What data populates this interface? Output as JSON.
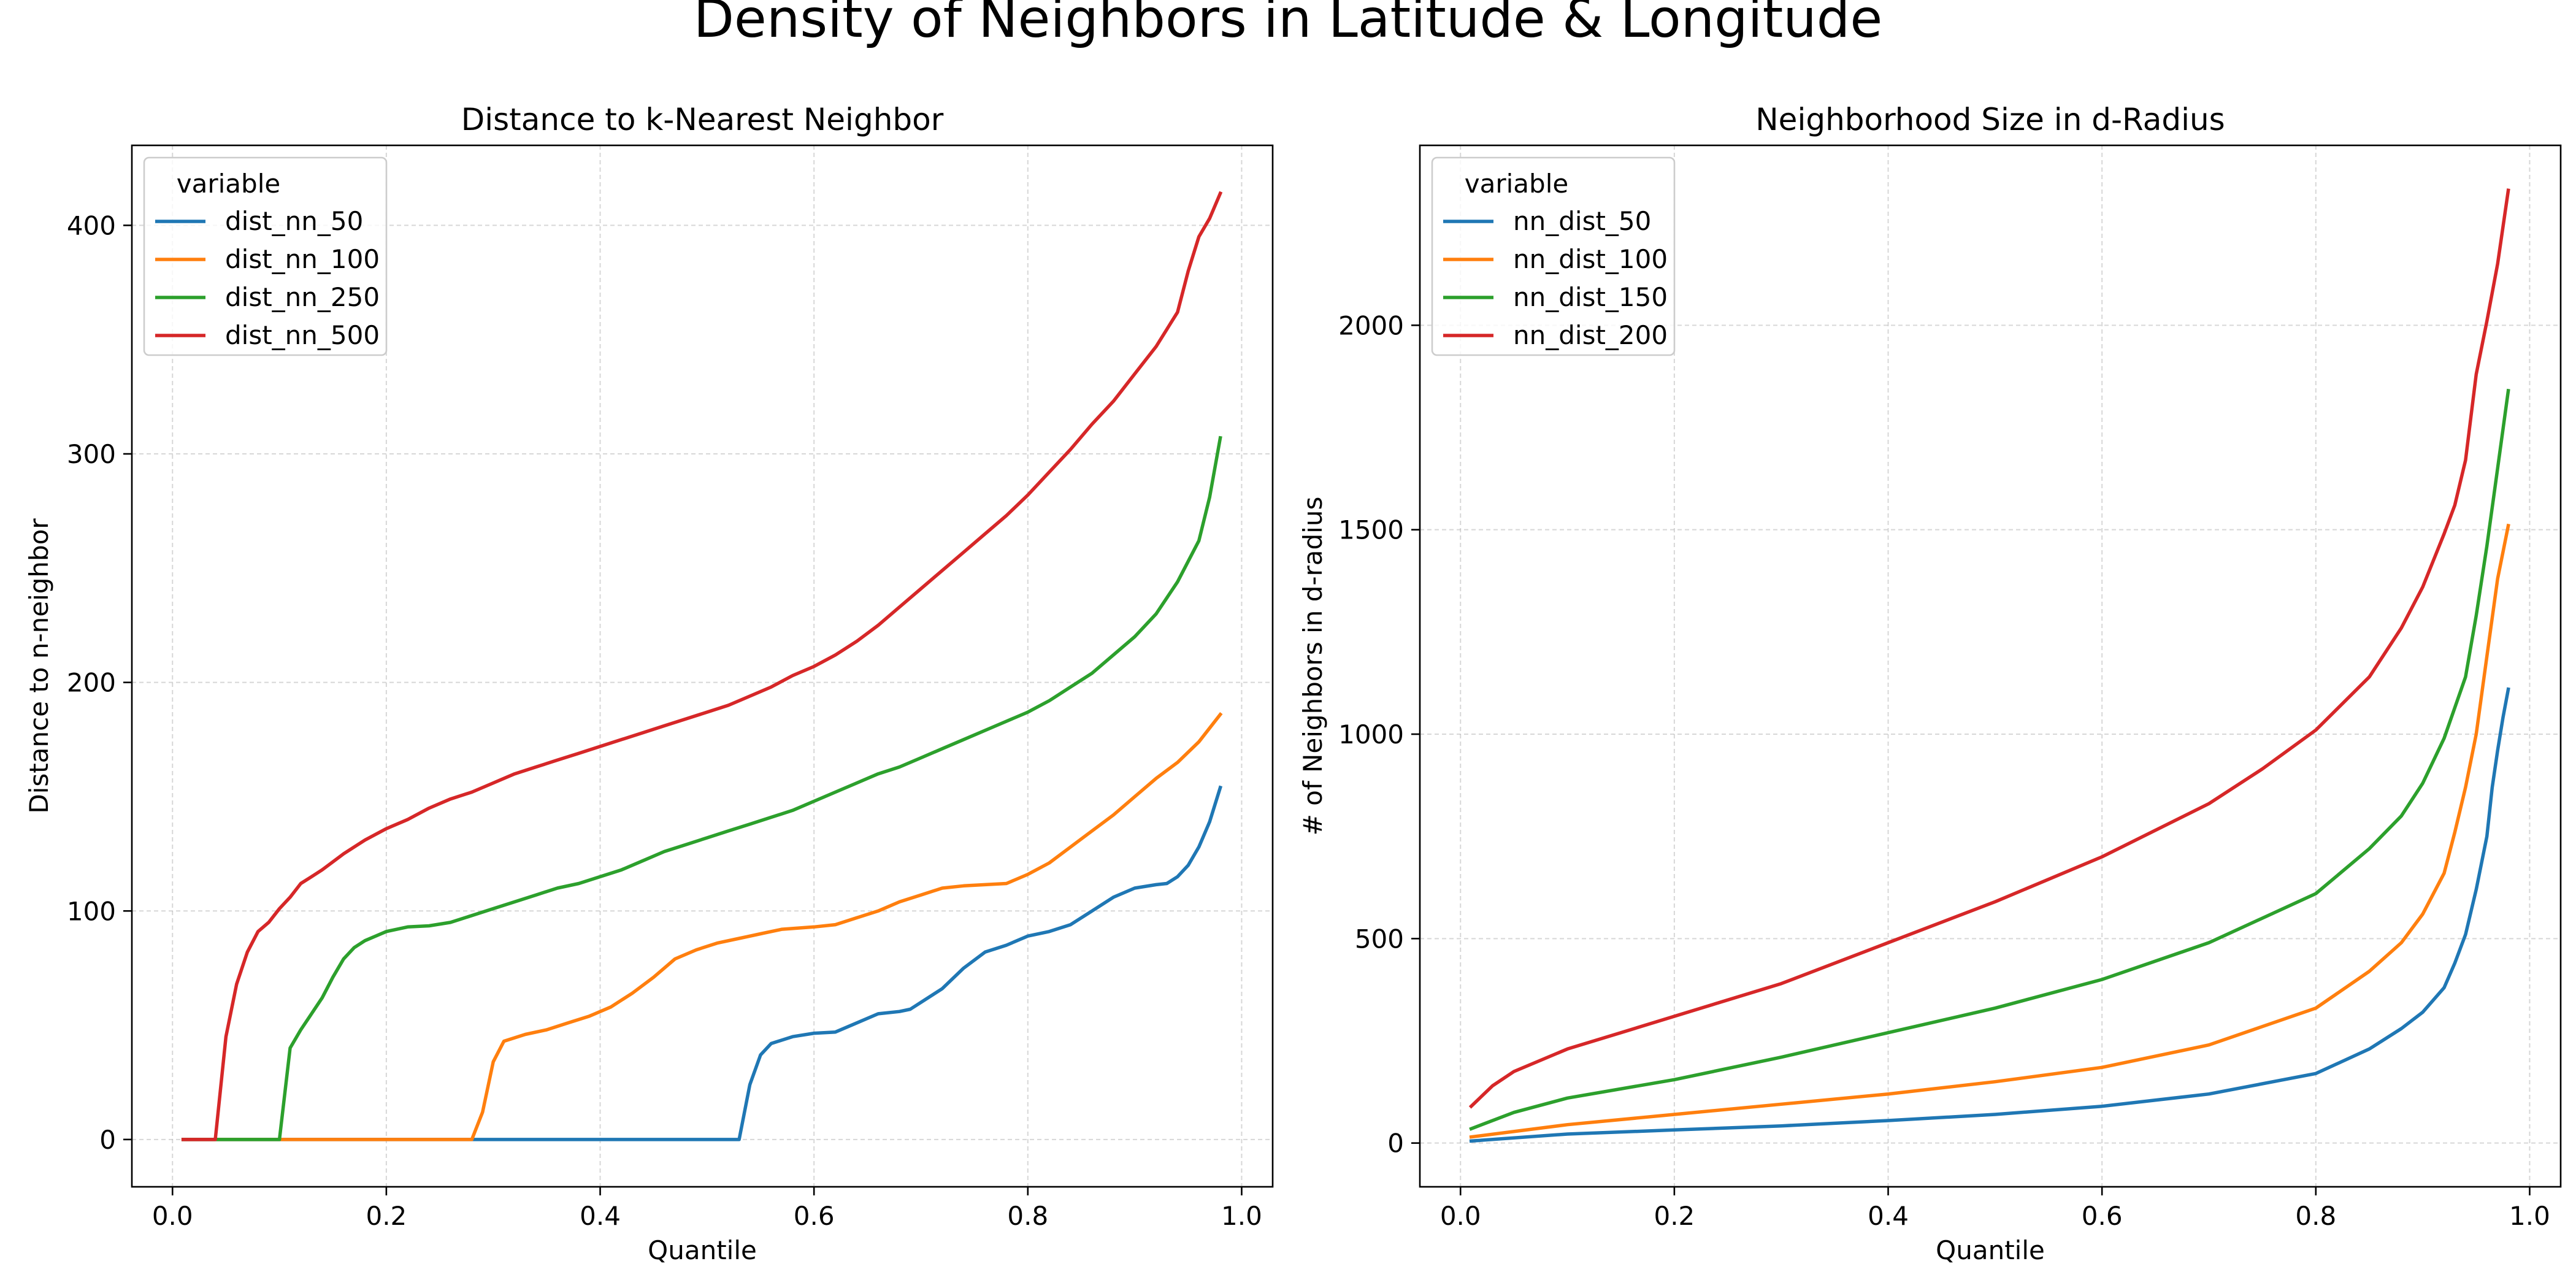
{
  "figure": {
    "title": "Density of Neighbors in Latitude & Longitude"
  },
  "chart_data": [
    {
      "type": "line",
      "title": "Distance to k-Nearest Neighbor",
      "xlabel": "Quantile",
      "ylabel": "Distance to n-neighbor",
      "xlim": [
        -0.038,
        1.029
      ],
      "ylim": [
        -20.7,
        435
      ],
      "xticks": [
        0.0,
        0.2,
        0.4,
        0.6,
        0.8,
        1.0
      ],
      "xtick_labels": [
        "0.0",
        "0.2",
        "0.4",
        "0.6",
        "0.8",
        "1.0"
      ],
      "yticks": [
        0,
        100,
        200,
        300,
        400
      ],
      "ytick_labels": [
        "0",
        "100",
        "200",
        "300",
        "400"
      ],
      "grid": true,
      "legend": {
        "title": "variable",
        "position": "top-left"
      },
      "series": [
        {
          "name": "dist_nn_50",
          "color": "#1f77b4",
          "x": [
            0.01,
            0.1,
            0.2,
            0.3,
            0.4,
            0.5,
            0.53,
            0.54,
            0.55,
            0.56,
            0.58,
            0.6,
            0.62,
            0.64,
            0.66,
            0.68,
            0.69,
            0.7,
            0.72,
            0.74,
            0.76,
            0.78,
            0.8,
            0.82,
            0.84,
            0.86,
            0.88,
            0.9,
            0.92,
            0.93,
            0.94,
            0.95,
            0.96,
            0.97,
            0.98
          ],
          "y": [
            0,
            0,
            0,
            0,
            0,
            0,
            0,
            24,
            37,
            42,
            45,
            46.5,
            47,
            51,
            55,
            56,
            57,
            60,
            66,
            75,
            82,
            85,
            89,
            91,
            94,
            100,
            106,
            110,
            111.5,
            112,
            115,
            120,
            128,
            139,
            154
          ]
        },
        {
          "name": "dist_nn_100",
          "color": "#ff7f0e",
          "x": [
            0.01,
            0.1,
            0.2,
            0.25,
            0.28,
            0.29,
            0.3,
            0.31,
            0.33,
            0.35,
            0.37,
            0.39,
            0.41,
            0.43,
            0.45,
            0.47,
            0.49,
            0.51,
            0.53,
            0.55,
            0.57,
            0.6,
            0.62,
            0.64,
            0.66,
            0.68,
            0.7,
            0.72,
            0.74,
            0.76,
            0.78,
            0.8,
            0.82,
            0.84,
            0.86,
            0.88,
            0.9,
            0.92,
            0.94,
            0.96,
            0.98
          ],
          "y": [
            0,
            0,
            0,
            0,
            0,
            12,
            34,
            43,
            46,
            48,
            51,
            54,
            58,
            64,
            71,
            79,
            83,
            86,
            88,
            90,
            92,
            93,
            94,
            97,
            100,
            104,
            107,
            110,
            111,
            111.5,
            112,
            116,
            121,
            128,
            135,
            142,
            150,
            158,
            165,
            174,
            186
          ]
        },
        {
          "name": "dist_nn_250",
          "color": "#2ca02c",
          "x": [
            0.01,
            0.05,
            0.1,
            0.11,
            0.12,
            0.13,
            0.14,
            0.15,
            0.16,
            0.17,
            0.18,
            0.2,
            0.22,
            0.24,
            0.26,
            0.28,
            0.3,
            0.32,
            0.34,
            0.36,
            0.38,
            0.4,
            0.42,
            0.44,
            0.46,
            0.48,
            0.5,
            0.52,
            0.54,
            0.56,
            0.58,
            0.6,
            0.62,
            0.64,
            0.66,
            0.68,
            0.7,
            0.72,
            0.74,
            0.76,
            0.78,
            0.8,
            0.82,
            0.84,
            0.86,
            0.88,
            0.9,
            0.92,
            0.94,
            0.96,
            0.97,
            0.98
          ],
          "y": [
            0,
            0,
            0,
            40,
            48,
            55,
            62,
            71,
            79,
            84,
            87,
            91,
            93,
            93.5,
            95,
            98,
            101,
            104,
            107,
            110,
            112,
            115,
            118,
            122,
            126,
            129,
            132,
            135,
            138,
            141,
            144,
            148,
            152,
            156,
            160,
            163,
            167,
            171,
            175,
            179,
            183,
            187,
            192,
            198,
            204,
            212,
            220,
            230,
            244,
            262,
            281,
            307
          ]
        },
        {
          "name": "dist_nn_500",
          "color": "#d62728",
          "x": [
            0.01,
            0.03,
            0.04,
            0.05,
            0.06,
            0.07,
            0.08,
            0.09,
            0.1,
            0.11,
            0.12,
            0.13,
            0.14,
            0.16,
            0.18,
            0.2,
            0.22,
            0.24,
            0.26,
            0.28,
            0.3,
            0.32,
            0.34,
            0.36,
            0.38,
            0.4,
            0.42,
            0.44,
            0.46,
            0.48,
            0.5,
            0.52,
            0.54,
            0.56,
            0.58,
            0.6,
            0.62,
            0.64,
            0.66,
            0.68,
            0.7,
            0.72,
            0.74,
            0.76,
            0.78,
            0.8,
            0.82,
            0.84,
            0.86,
            0.88,
            0.9,
            0.92,
            0.94,
            0.95,
            0.96,
            0.97,
            0.98
          ],
          "y": [
            0,
            0,
            0,
            45,
            68,
            82,
            91,
            95,
            101,
            106,
            112,
            115,
            118,
            125,
            131,
            136,
            140,
            145,
            149,
            152,
            156,
            160,
            163,
            166,
            169,
            172,
            175,
            178,
            181,
            184,
            187,
            190,
            194,
            198,
            203,
            207,
            212,
            218,
            225,
            233,
            241,
            249,
            257,
            265,
            273,
            282,
            292,
            302,
            313,
            323,
            335,
            347,
            362,
            380,
            395,
            403,
            414
          ]
        }
      ]
    },
    {
      "type": "line",
      "title": "Neighborhood Size in d-Radius",
      "xlabel": "Quantile",
      "ylabel": "# of Neighbors in d-radius",
      "xlim": [
        -0.038,
        1.029
      ],
      "ylim": [
        -107,
        2440
      ],
      "xticks": [
        0.0,
        0.2,
        0.4,
        0.6,
        0.8,
        1.0
      ],
      "xtick_labels": [
        "0.0",
        "0.2",
        "0.4",
        "0.6",
        "0.8",
        "1.0"
      ],
      "yticks": [
        0,
        500,
        1000,
        1500,
        2000
      ],
      "ytick_labels": [
        "0",
        "500",
        "1000",
        "1500",
        "2000"
      ],
      "grid": true,
      "legend": {
        "title": "variable",
        "position": "top-left"
      },
      "series": [
        {
          "name": "nn_dist_50",
          "color": "#1f77b4",
          "x": [
            0.01,
            0.1,
            0.2,
            0.3,
            0.4,
            0.5,
            0.6,
            0.7,
            0.8,
            0.85,
            0.88,
            0.9,
            0.92,
            0.93,
            0.94,
            0.95,
            0.96,
            0.965,
            0.97,
            0.975,
            0.98
          ],
          "y": [
            5,
            22,
            32,
            42,
            55,
            70,
            90,
            120,
            170,
            230,
            280,
            320,
            380,
            440,
            510,
            620,
            750,
            870,
            960,
            1040,
            1110
          ]
        },
        {
          "name": "nn_dist_100",
          "color": "#ff7f0e",
          "x": [
            0.01,
            0.1,
            0.2,
            0.3,
            0.4,
            0.5,
            0.6,
            0.7,
            0.8,
            0.85,
            0.88,
            0.9,
            0.92,
            0.93,
            0.94,
            0.95,
            0.96,
            0.97,
            0.98
          ],
          "y": [
            15,
            45,
            70,
            95,
            120,
            150,
            185,
            240,
            330,
            420,
            490,
            560,
            660,
            760,
            870,
            1000,
            1190,
            1380,
            1510
          ]
        },
        {
          "name": "nn_dist_150",
          "color": "#2ca02c",
          "x": [
            0.01,
            0.05,
            0.1,
            0.2,
            0.3,
            0.4,
            0.5,
            0.6,
            0.7,
            0.8,
            0.85,
            0.88,
            0.9,
            0.92,
            0.94,
            0.95,
            0.96,
            0.97,
            0.98
          ],
          "y": [
            35,
            75,
            110,
            155,
            210,
            270,
            330,
            400,
            490,
            610,
            720,
            800,
            880,
            990,
            1140,
            1290,
            1460,
            1650,
            1840
          ]
        },
        {
          "name": "nn_dist_200",
          "color": "#d62728",
          "x": [
            0.01,
            0.03,
            0.05,
            0.1,
            0.15,
            0.2,
            0.3,
            0.4,
            0.5,
            0.6,
            0.7,
            0.75,
            0.8,
            0.85,
            0.88,
            0.9,
            0.92,
            0.93,
            0.94,
            0.95,
            0.96,
            0.97,
            0.98
          ],
          "y": [
            90,
            140,
            175,
            230,
            270,
            310,
            390,
            490,
            590,
            700,
            830,
            915,
            1010,
            1140,
            1260,
            1360,
            1490,
            1560,
            1670,
            1880,
            2010,
            2150,
            2330
          ]
        }
      ]
    }
  ]
}
